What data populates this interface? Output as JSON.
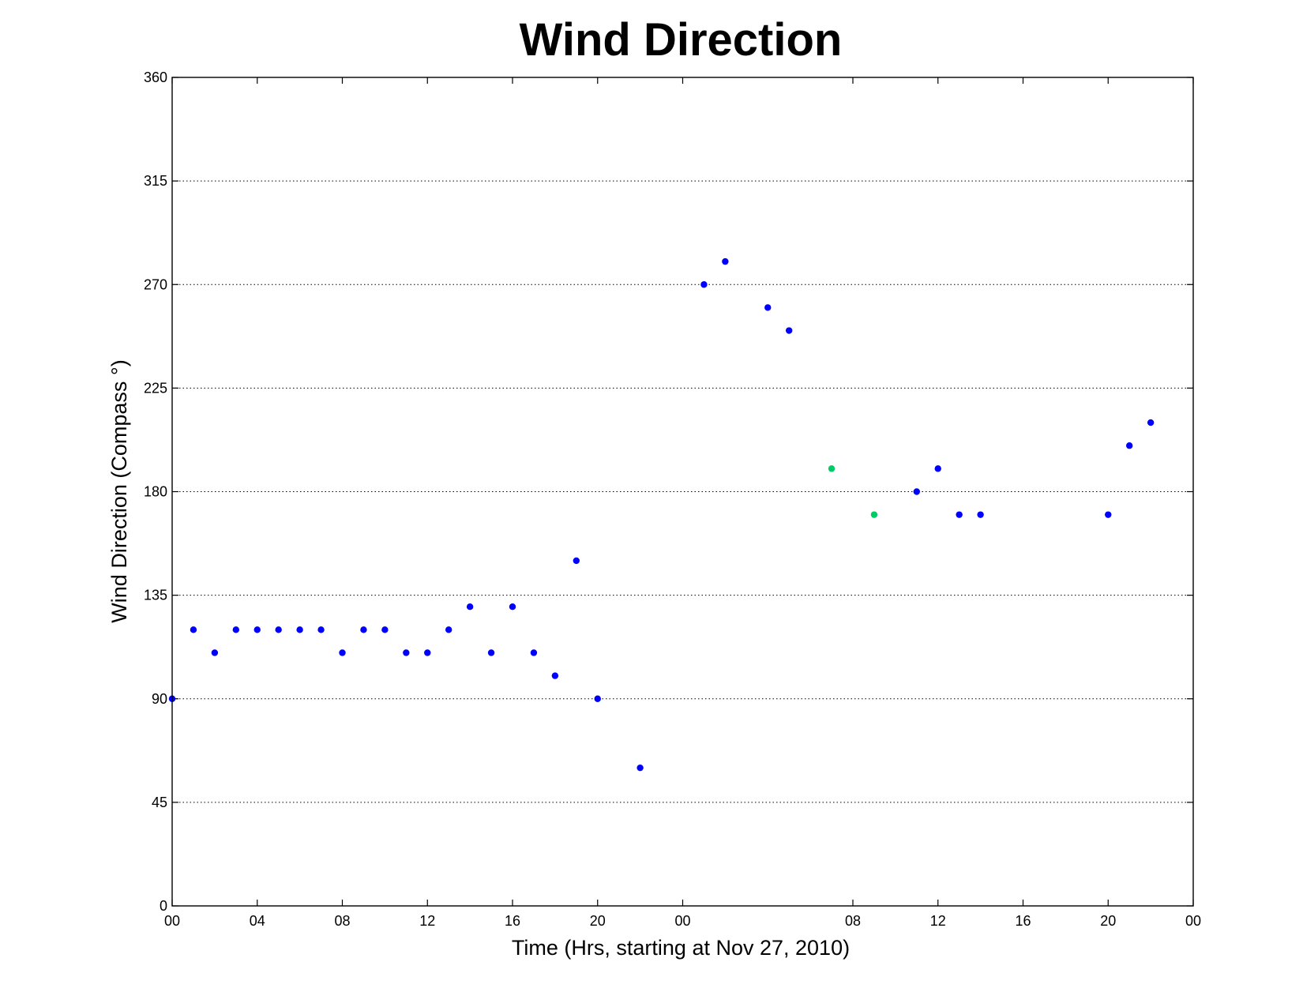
{
  "chart_data": {
    "type": "scatter",
    "title": "Wind Direction",
    "xlabel": "Time (Hrs, starting at Nov 27, 2010)",
    "ylabel": "Wind Direction (Compass  °)",
    "xlim": [
      "2010-11-27 00:00",
      "2010-11-29 00:00"
    ],
    "ylim": [
      0,
      360
    ],
    "x_ticks": [
      "00",
      "04",
      "08",
      "12",
      "16",
      "20",
      "00",
      "08",
      "12",
      "16",
      "20",
      "00"
    ],
    "x_tick_hours": [
      0,
      4,
      8,
      12,
      16,
      20,
      24,
      32,
      36,
      40,
      44,
      48
    ],
    "y_ticks": [
      0,
      45,
      90,
      135,
      180,
      225,
      270,
      315,
      360
    ],
    "grid": "y-dotted",
    "series": [
      {
        "color": "#0000ff",
        "points": [
          {
            "x": "2010-11-27 00:00",
            "y": 90
          },
          {
            "x": "2010-11-27 01:00",
            "y": 120
          },
          {
            "x": "2010-11-27 02:00",
            "y": 110
          },
          {
            "x": "2010-11-27 03:00",
            "y": 120
          },
          {
            "x": "2010-11-27 04:00",
            "y": 120
          },
          {
            "x": "2010-11-27 05:00",
            "y": 120
          },
          {
            "x": "2010-11-27 06:00",
            "y": 120
          },
          {
            "x": "2010-11-27 07:00",
            "y": 120
          },
          {
            "x": "2010-11-27 08:00",
            "y": 110
          },
          {
            "x": "2010-11-27 09:00",
            "y": 120
          },
          {
            "x": "2010-11-27 10:00",
            "y": 120
          },
          {
            "x": "2010-11-27 11:00",
            "y": 110
          },
          {
            "x": "2010-11-27 12:00",
            "y": 110
          },
          {
            "x": "2010-11-27 13:00",
            "y": 120
          },
          {
            "x": "2010-11-27 14:00",
            "y": 130
          },
          {
            "x": "2010-11-27 15:00",
            "y": 110
          },
          {
            "x": "2010-11-27 16:00",
            "y": 130
          },
          {
            "x": "2010-11-27 17:00",
            "y": 110
          },
          {
            "x": "2010-11-27 18:00",
            "y": 100
          },
          {
            "x": "2010-11-27 19:00",
            "y": 150
          },
          {
            "x": "2010-11-27 20:00",
            "y": 90
          },
          {
            "x": "2010-11-27 22:00",
            "y": 60
          },
          {
            "x": "2010-11-28 01:00",
            "y": 270
          },
          {
            "x": "2010-11-28 02:00",
            "y": 280
          },
          {
            "x": "2010-11-28 04:00",
            "y": 260
          },
          {
            "x": "2010-11-28 05:00",
            "y": 250
          },
          {
            "x": "2010-11-28 11:00",
            "y": 180
          },
          {
            "x": "2010-11-28 12:00",
            "y": 190
          },
          {
            "x": "2010-11-28 13:00",
            "y": 170
          },
          {
            "x": "2010-11-28 14:00",
            "y": 170
          },
          {
            "x": "2010-11-28 20:00",
            "y": 170
          },
          {
            "x": "2010-11-28 21:00",
            "y": 200
          },
          {
            "x": "2010-11-28 22:00",
            "y": 210
          }
        ]
      },
      {
        "color": "#00cc66",
        "points": [
          {
            "x": "2010-11-28 07:00",
            "y": 190
          },
          {
            "x": "2010-11-28 09:00",
            "y": 170
          }
        ]
      }
    ]
  }
}
